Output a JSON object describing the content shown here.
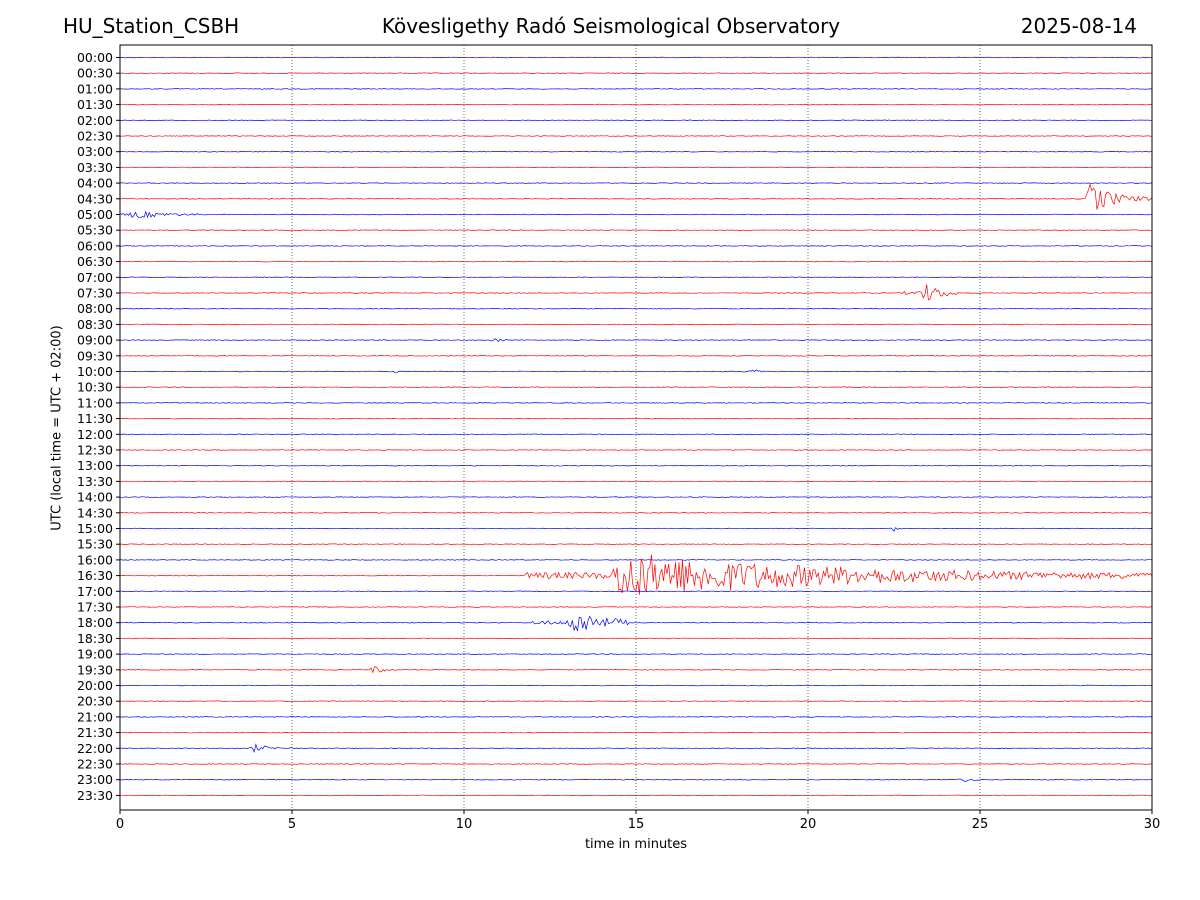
{
  "header": {
    "station": "HU_Station_CSBH",
    "observatory": "Kövesligethy Radó Seismological Observatory",
    "date": "2025-08-14"
  },
  "chart_data": {
    "type": "line",
    "title": "Kövesligethy Radó Seismological Observatory",
    "xlabel": "time in minutes",
    "ylabel": "UTC (local time = UTC + 02:00)",
    "xlim": [
      0,
      30
    ],
    "x_ticks": [
      0,
      5,
      10,
      15,
      20,
      25,
      30
    ],
    "grid": "vertical dotted at 5-minute ticks",
    "trace_colors": [
      "#0000ff",
      "#ff0000"
    ],
    "rows": [
      "00:00",
      "00:30",
      "01:00",
      "01:30",
      "02:00",
      "02:30",
      "03:00",
      "03:30",
      "04:00",
      "04:30",
      "05:00",
      "05:30",
      "06:00",
      "06:30",
      "07:00",
      "07:30",
      "08:00",
      "08:30",
      "09:00",
      "09:30",
      "10:00",
      "10:30",
      "11:00",
      "11:30",
      "12:00",
      "12:30",
      "13:00",
      "13:30",
      "14:00",
      "14:30",
      "15:00",
      "15:30",
      "16:00",
      "16:30",
      "17:00",
      "17:30",
      "18:00",
      "18:30",
      "19:00",
      "19:30",
      "20:00",
      "20:30",
      "21:00",
      "21:30",
      "22:00",
      "22:30",
      "23:00",
      "23:30"
    ],
    "events": [
      {
        "row": "04:30",
        "start_min": 28.1,
        "end_min": 30.0,
        "peak_min": 28.2,
        "amplitude": 1.0
      },
      {
        "row": "05:00",
        "start_min": 0.0,
        "end_min": 2.5,
        "peak_min": 0.4,
        "amplitude": 0.25
      },
      {
        "row": "07:30",
        "start_min": 22.8,
        "end_min": 24.3,
        "peak_min": 23.4,
        "amplitude": 0.6
      },
      {
        "row": "09:00",
        "start_min": 10.8,
        "end_min": 11.3,
        "peak_min": 10.9,
        "amplitude": 0.15
      },
      {
        "row": "10:00",
        "start_min": 8.0,
        "end_min": 8.4,
        "peak_min": 8.1,
        "amplitude": 0.15
      },
      {
        "row": "10:00",
        "start_min": 17.5,
        "end_min": 18.7,
        "peak_min": 18.5,
        "amplitude": 0.15
      },
      {
        "row": "15:00",
        "start_min": 22.4,
        "end_min": 22.6,
        "peak_min": 22.5,
        "amplitude": 0.2
      },
      {
        "row": "16:30",
        "start_min": 11.8,
        "end_min": 30.0,
        "peak_min": 14.5,
        "amplitude": 1.5
      },
      {
        "row": "18:00",
        "start_min": 12.0,
        "end_min": 14.8,
        "peak_min": 13.2,
        "amplitude": 0.8
      },
      {
        "row": "19:30",
        "start_min": 7.3,
        "end_min": 8.0,
        "peak_min": 7.4,
        "amplitude": 0.25
      },
      {
        "row": "22:00",
        "start_min": 3.8,
        "end_min": 5.0,
        "peak_min": 3.9,
        "amplitude": 0.25
      },
      {
        "row": "23:00",
        "start_min": 24.4,
        "end_min": 25.0,
        "peak_min": 24.6,
        "amplitude": 0.15
      }
    ]
  }
}
